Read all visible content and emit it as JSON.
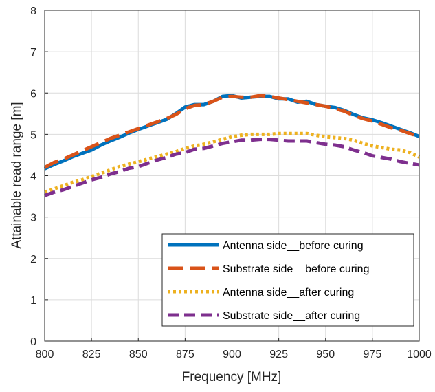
{
  "chart_data": {
    "type": "line",
    "title": "",
    "xlabel": "Frequency [MHz]",
    "ylabel": "Attainable read range [m]",
    "xlim": [
      800,
      1000
    ],
    "ylim": [
      0,
      8
    ],
    "xticks": [
      800,
      825,
      850,
      875,
      900,
      925,
      950,
      975,
      1000
    ],
    "yticks": [
      0,
      1,
      2,
      3,
      4,
      5,
      6,
      7,
      8
    ],
    "grid": true,
    "legend_position": "bottom-right",
    "series": [
      {
        "name": "Antenna side__before curing",
        "color": "#0072BD",
        "style": "solid",
        "x": [
          800,
          805,
          810,
          815,
          820,
          825,
          830,
          835,
          840,
          845,
          850,
          855,
          860,
          865,
          870,
          875,
          880,
          885,
          890,
          895,
          900,
          905,
          910,
          915,
          920,
          925,
          930,
          935,
          940,
          945,
          950,
          955,
          960,
          965,
          970,
          975,
          980,
          985,
          990,
          995,
          1000
        ],
        "y": [
          4.17,
          4.27,
          4.36,
          4.46,
          4.54,
          4.62,
          4.74,
          4.84,
          4.93,
          5.03,
          5.12,
          5.2,
          5.28,
          5.36,
          5.5,
          5.66,
          5.72,
          5.72,
          5.8,
          5.92,
          5.94,
          5.88,
          5.9,
          5.92,
          5.92,
          5.86,
          5.86,
          5.78,
          5.8,
          5.72,
          5.68,
          5.65,
          5.58,
          5.48,
          5.4,
          5.35,
          5.28,
          5.2,
          5.12,
          5.04,
          4.95
        ]
      },
      {
        "name": "Substrate side__before curing",
        "color": "#D95319",
        "style": "dashed",
        "x": [
          800,
          805,
          810,
          815,
          820,
          825,
          830,
          835,
          840,
          845,
          850,
          855,
          860,
          865,
          870,
          875,
          880,
          885,
          890,
          895,
          900,
          905,
          910,
          915,
          920,
          925,
          930,
          935,
          940,
          945,
          950,
          955,
          960,
          965,
          970,
          975,
          980,
          985,
          990,
          995,
          1000
        ],
        "y": [
          4.2,
          4.32,
          4.4,
          4.5,
          4.6,
          4.7,
          4.8,
          4.9,
          4.98,
          5.06,
          5.14,
          5.22,
          5.3,
          5.38,
          5.48,
          5.62,
          5.7,
          5.72,
          5.8,
          5.9,
          5.92,
          5.9,
          5.9,
          5.94,
          5.92,
          5.88,
          5.84,
          5.8,
          5.76,
          5.72,
          5.68,
          5.62,
          5.56,
          5.46,
          5.38,
          5.32,
          5.24,
          5.16,
          5.1,
          5.02,
          4.95
        ]
      },
      {
        "name": "Antenna side__after curing",
        "color": "#EDB120",
        "style": "dotted",
        "x": [
          800,
          805,
          810,
          815,
          820,
          825,
          830,
          835,
          840,
          845,
          850,
          855,
          860,
          865,
          870,
          875,
          880,
          885,
          890,
          895,
          900,
          905,
          910,
          915,
          920,
          925,
          930,
          935,
          940,
          945,
          950,
          955,
          960,
          965,
          970,
          975,
          980,
          985,
          990,
          995,
          1000
        ],
        "y": [
          3.6,
          3.68,
          3.76,
          3.84,
          3.9,
          3.98,
          4.06,
          4.14,
          4.22,
          4.28,
          4.34,
          4.4,
          4.46,
          4.52,
          4.58,
          4.66,
          4.72,
          4.76,
          4.82,
          4.88,
          4.94,
          4.98,
          5.0,
          5.0,
          5.0,
          5.02,
          5.02,
          5.02,
          5.02,
          4.98,
          4.94,
          4.92,
          4.9,
          4.86,
          4.78,
          4.72,
          4.68,
          4.64,
          4.62,
          4.56,
          4.45
        ]
      },
      {
        "name": "Substrate side__after curing",
        "color": "#7E2F8E",
        "style": "dashed",
        "x": [
          800,
          805,
          810,
          815,
          820,
          825,
          830,
          835,
          840,
          845,
          850,
          855,
          860,
          865,
          870,
          875,
          880,
          885,
          890,
          895,
          900,
          905,
          910,
          915,
          920,
          925,
          930,
          935,
          940,
          945,
          950,
          955,
          960,
          965,
          970,
          975,
          980,
          985,
          990,
          995,
          1000
        ],
        "y": [
          3.52,
          3.6,
          3.66,
          3.74,
          3.82,
          3.9,
          3.96,
          4.04,
          4.1,
          4.18,
          4.22,
          4.3,
          4.38,
          4.44,
          4.52,
          4.56,
          4.64,
          4.66,
          4.72,
          4.78,
          4.82,
          4.86,
          4.86,
          4.88,
          4.88,
          4.86,
          4.84,
          4.84,
          4.84,
          4.8,
          4.76,
          4.74,
          4.7,
          4.62,
          4.56,
          4.48,
          4.44,
          4.4,
          4.34,
          4.3,
          4.26
        ]
      }
    ]
  }
}
